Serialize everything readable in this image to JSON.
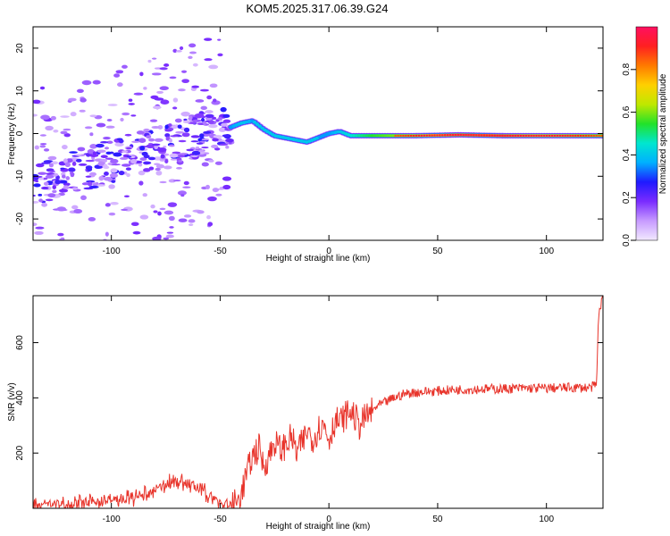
{
  "figure_title": "KOM5.2025.317.06.39.G24",
  "colors": {
    "snr_line": "#e8342b",
    "track_core": "#ff2a2a",
    "track_mid": "#22dd33",
    "track_outer": "#19d7ff",
    "track_edge": "#3b22ff",
    "scatter_dark": "#6a00ff",
    "scatter_light": "#c7a0ff"
  },
  "chart_data": [
    {
      "type": "heatmap",
      "name": "spectrogram",
      "xlabel": "Height of straight line (km)",
      "ylabel": "Frequency (Hz)",
      "xlim": [
        -136,
        126
      ],
      "ylim": [
        -25,
        25
      ],
      "xticks": [
        -100,
        -50,
        0,
        50,
        100
      ],
      "yticks": [
        -20,
        -10,
        0,
        10,
        20
      ],
      "colorbar": {
        "label": "Normalized spectral amplitude",
        "range": [
          0,
          1
        ],
        "ticks": [
          "0.0",
          "0.2",
          "0.4",
          "0.6",
          "0.8"
        ],
        "tick_values": [
          0.0,
          0.2,
          0.4,
          0.6,
          0.8
        ],
        "colormap": [
          "#f2e9ff",
          "#c79bff",
          "#7a2cff",
          "#1f1aff",
          "#00b0ff",
          "#00e6d0",
          "#22e22a",
          "#bfe800",
          "#ffd000",
          "#ff7a00",
          "#ff2020",
          "#ff0f60"
        ]
      },
      "ridge": {
        "x": [
          -45,
          -40,
          -35,
          -30,
          -25,
          -20,
          -15,
          -10,
          -5,
          0,
          5,
          10,
          20,
          40,
          60,
          80,
          100,
          126
        ],
        "freq": [
          1.5,
          2.5,
          3.0,
          1.0,
          -0.5,
          -1.0,
          -1.5,
          -2.0,
          -1.0,
          0.0,
          0.5,
          -0.5,
          -0.5,
          -0.5,
          -0.3,
          -0.5,
          -0.5,
          -0.5
        ],
        "amplitude": [
          0.35,
          0.4,
          0.35,
          0.3,
          0.25,
          0.3,
          0.3,
          0.3,
          0.35,
          0.35,
          0.4,
          0.45,
          0.55,
          0.65,
          0.8,
          0.8,
          0.7,
          0.6
        ]
      },
      "scatter_region": {
        "x_range": [
          -136,
          -45
        ],
        "freq_trend_start": -12,
        "freq_trend_end": 2,
        "amplitude_range": [
          0.05,
          0.25
        ]
      }
    },
    {
      "type": "line",
      "name": "snr",
      "xlabel": "Height of straight line (km)",
      "ylabel": "SNR (v/v)",
      "xlim": [
        -136,
        126
      ],
      "ylim": [
        0,
        770
      ],
      "xticks": [
        -100,
        -50,
        0,
        50,
        100
      ],
      "yticks": [
        200,
        400,
        600
      ],
      "series": [
        {
          "name": "SNR",
          "x": [
            -136,
            -120,
            -100,
            -90,
            -80,
            -75,
            -70,
            -65,
            -60,
            -55,
            -50,
            -45,
            -42,
            -40,
            -38,
            -35,
            -32,
            -30,
            -27,
            -25,
            -22,
            -20,
            -17,
            -15,
            -12,
            -10,
            -7,
            -5,
            -2,
            0,
            3,
            5,
            8,
            10,
            12,
            14,
            16,
            18,
            20,
            22,
            25,
            30,
            35,
            40,
            50,
            60,
            70,
            80,
            90,
            100,
            110,
            120,
            123,
            124,
            125,
            126
          ],
          "y": [
            15,
            15,
            30,
            35,
            60,
            90,
            100,
            90,
            70,
            50,
            20,
            10,
            25,
            60,
            120,
            190,
            220,
            150,
            200,
            240,
            210,
            230,
            260,
            200,
            240,
            280,
            250,
            290,
            300,
            250,
            320,
            310,
            340,
            350,
            330,
            300,
            320,
            340,
            350,
            370,
            380,
            400,
            415,
            420,
            425,
            430,
            432,
            433,
            435,
            435,
            437,
            437,
            445,
            700,
            740,
            760
          ],
          "noise": 18
        }
      ]
    }
  ]
}
